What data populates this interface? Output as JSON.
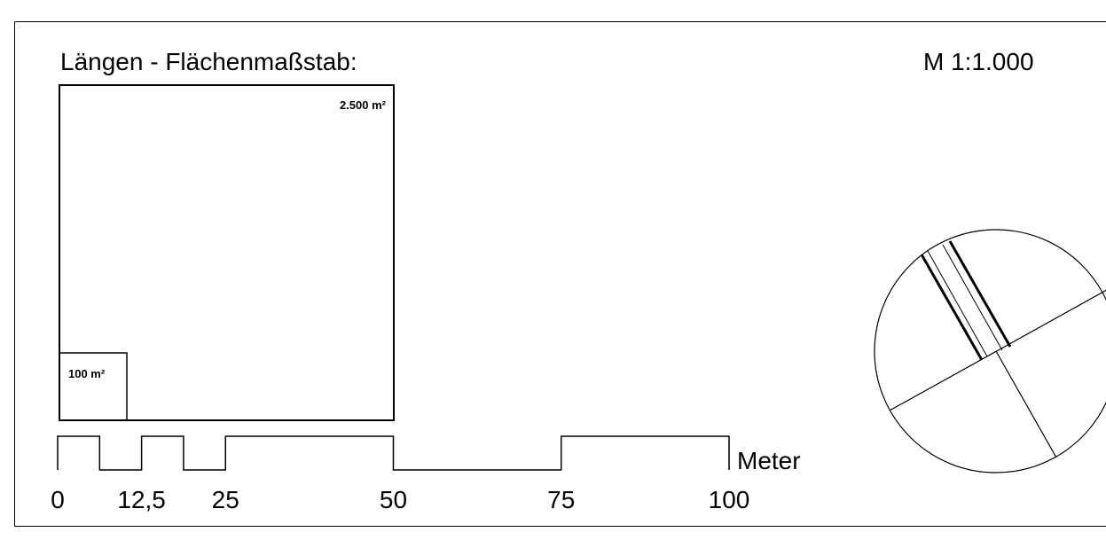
{
  "title": "Längen - Flächenmaßstab:",
  "scale": "M 1:1.000",
  "areas": {
    "large": "2.500 m²",
    "small": "100 m²"
  },
  "scalebar": {
    "unit": "Meter",
    "ticks": [
      {
        "value": 0,
        "label": "0"
      },
      {
        "value": 12.5,
        "label": "12,5"
      },
      {
        "value": 25,
        "label": "25"
      },
      {
        "value": 50,
        "label": "50"
      },
      {
        "value": 75,
        "label": "75"
      },
      {
        "value": 100,
        "label": "100"
      }
    ],
    "segments": [
      {
        "from": 0,
        "to": 6.25,
        "level": "high"
      },
      {
        "from": 6.25,
        "to": 12.5,
        "level": "low"
      },
      {
        "from": 12.5,
        "to": 18.75,
        "level": "high"
      },
      {
        "from": 18.75,
        "to": 25,
        "level": "low"
      },
      {
        "from": 25,
        "to": 50,
        "level": "high"
      },
      {
        "from": 50,
        "to": 75,
        "level": "low"
      },
      {
        "from": 75,
        "to": 100,
        "level": "high"
      }
    ]
  },
  "north_arrow": {
    "icon": "north-arrow-icon"
  }
}
